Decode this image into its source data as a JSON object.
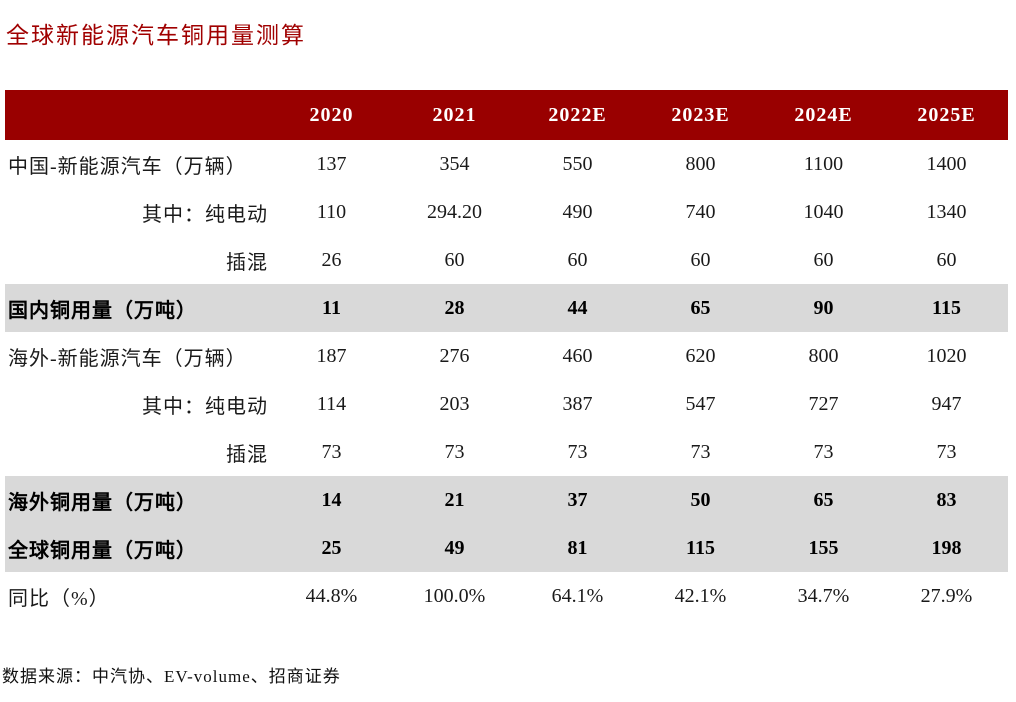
{
  "title": "全球新能源汽车铜用量测算",
  "source_note": "数据来源：中汽协、EV-volume、招商证券",
  "colors": {
    "header_bg": "#990000",
    "header_text": "#ffffff",
    "title_text": "#a00000",
    "highlight_row_bg": "#d9d9d9"
  },
  "table": {
    "columns": [
      "2020",
      "2021",
      "2022E",
      "2023E",
      "2024E",
      "2025E"
    ],
    "rows": [
      {
        "label": "中国-新能源汽车（万辆）",
        "style": "main",
        "values": [
          "137",
          "354",
          "550",
          "800",
          "1100",
          "1400"
        ]
      },
      {
        "label": "其中：纯电动",
        "style": "sub",
        "values": [
          "110",
          "294.20",
          "490",
          "740",
          "1040",
          "1340"
        ]
      },
      {
        "label": "插混",
        "style": "sub",
        "values": [
          "26",
          "60",
          "60",
          "60",
          "60",
          "60"
        ]
      },
      {
        "label": "国内铜用量（万吨）",
        "style": "highlight",
        "values": [
          "11",
          "28",
          "44",
          "65",
          "90",
          "115"
        ]
      },
      {
        "label": "海外-新能源汽车（万辆）",
        "style": "main",
        "values": [
          "187",
          "276",
          "460",
          "620",
          "800",
          "1020"
        ]
      },
      {
        "label": "其中：纯电动",
        "style": "sub",
        "values": [
          "114",
          "203",
          "387",
          "547",
          "727",
          "947"
        ]
      },
      {
        "label": "插混",
        "style": "sub",
        "values": [
          "73",
          "73",
          "73",
          "73",
          "73",
          "73"
        ]
      },
      {
        "label": "海外铜用量（万吨）",
        "style": "highlight",
        "values": [
          "14",
          "21",
          "37",
          "50",
          "65",
          "83"
        ]
      },
      {
        "label": "全球铜用量（万吨）",
        "style": "highlight",
        "values": [
          "25",
          "49",
          "81",
          "115",
          "155",
          "198"
        ]
      },
      {
        "label": "同比（%）",
        "style": "main",
        "values": [
          "44.8%",
          "100.0%",
          "64.1%",
          "42.1%",
          "34.7%",
          "27.9%"
        ]
      }
    ]
  }
}
